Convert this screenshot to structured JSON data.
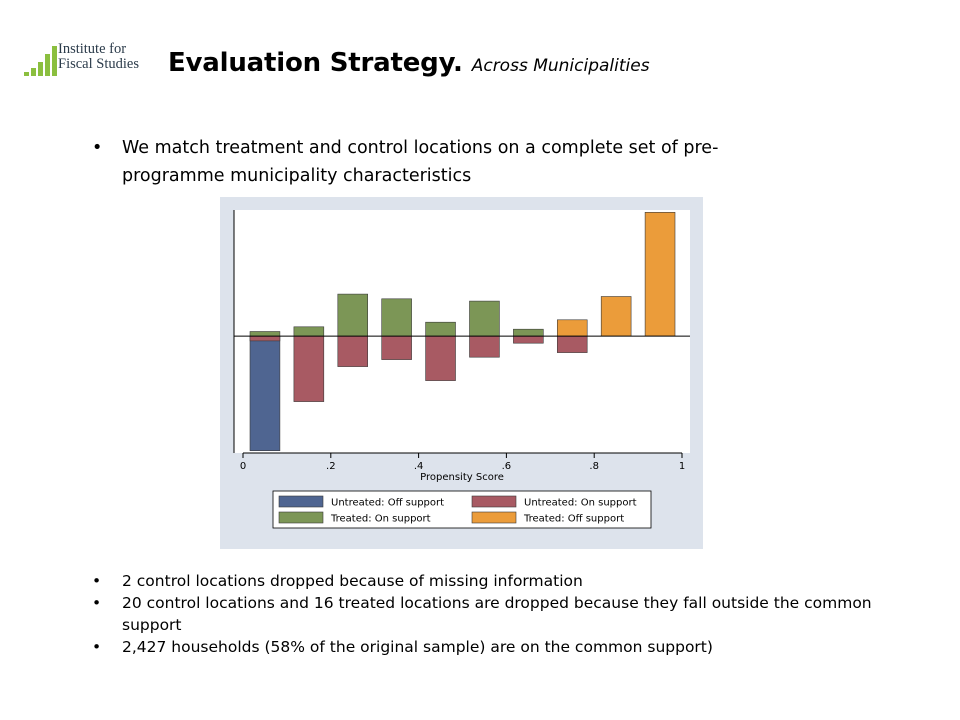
{
  "logo": {
    "line1": "Institute for",
    "line2": "Fiscal Studies",
    "color": "#8bbf3f"
  },
  "title": {
    "main": "Evaluation Strategy.",
    "sub": "Across Municipalities"
  },
  "bullets_top": [
    "We match treatment and control locations on a complete set of pre-programme municipality characteristics"
  ],
  "bullets_bottom": [
    "2 control locations dropped because of missing information",
    "20 control locations and 16 treated locations are dropped because they fall outside the common support",
    "2,427 households (58% of the original sample) are on the common support)"
  ],
  "chart_data": {
    "type": "bar",
    "title": "",
    "xlabel": "Propensity Score",
    "ylabel": "",
    "xlim": [
      0,
      1
    ],
    "ylim": [
      -0.5,
      0.54
    ],
    "x_ticks": [
      "0",
      ".2",
      ".4",
      ".6",
      ".8",
      "1"
    ],
    "x_tick_values": [
      0,
      0.2,
      0.4,
      0.6,
      0.8,
      1
    ],
    "bin_width": 0.1,
    "bins": [
      0,
      0.1,
      0.2,
      0.3,
      0.4,
      0.5,
      0.6,
      0.7,
      0.8,
      0.9
    ],
    "series": [
      {
        "name": "Untreated: Off support",
        "color": "#4f6591",
        "direction": "down",
        "values": [
          -0.49,
          0,
          0,
          0,
          0,
          0,
          0,
          0,
          0,
          0
        ]
      },
      {
        "name": "Untreated: On support",
        "color": "#a85a63",
        "direction": "down",
        "values": [
          -0.02,
          -0.28,
          -0.13,
          -0.1,
          -0.19,
          -0.09,
          -0.03,
          -0.07,
          0,
          0
        ]
      },
      {
        "name": "Treated: On support",
        "color": "#7c9656",
        "direction": "up",
        "values": [
          0.02,
          0.04,
          0.18,
          0.16,
          0.06,
          0.15,
          0.03,
          0.03,
          0,
          0
        ]
      },
      {
        "name": "Treated: Off support",
        "color": "#eb9c3a",
        "direction": "up",
        "values": [
          0,
          0,
          0,
          0,
          0,
          0,
          0,
          0.07,
          0.17,
          0.53
        ]
      }
    ],
    "legend": {
      "position": "bottom",
      "entries": [
        "Untreated: Off support",
        "Untreated: On support",
        "Treated: On support",
        "Treated: Off support"
      ]
    },
    "grid": false
  }
}
